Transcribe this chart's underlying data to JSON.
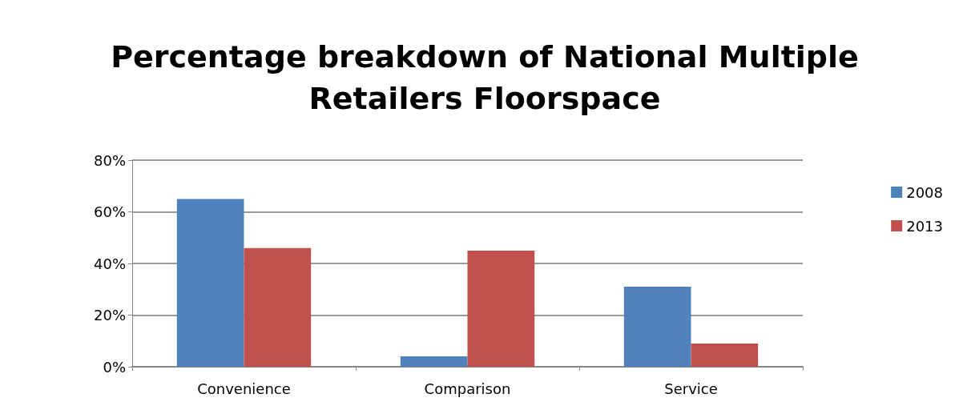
{
  "chart_data": {
    "type": "bar",
    "title": "Percentage breakdown of National Multiple\nRetailers Floorspace",
    "categories": [
      "Convenience",
      "Comparison",
      "Service"
    ],
    "series": [
      {
        "name": "2008",
        "color": "#4f81bd",
        "values": [
          65,
          4,
          31
        ]
      },
      {
        "name": "2013",
        "color": "#c0504d",
        "values": [
          46,
          45,
          9
        ]
      }
    ],
    "ylim": [
      0,
      80
    ],
    "yticks": [
      {
        "value": 0,
        "label": "0%"
      },
      {
        "value": 20,
        "label": "20%"
      },
      {
        "value": 40,
        "label": "40%"
      },
      {
        "value": 60,
        "label": "60%"
      },
      {
        "value": 80,
        "label": "80%"
      }
    ],
    "grid": "y",
    "legend": "right"
  }
}
